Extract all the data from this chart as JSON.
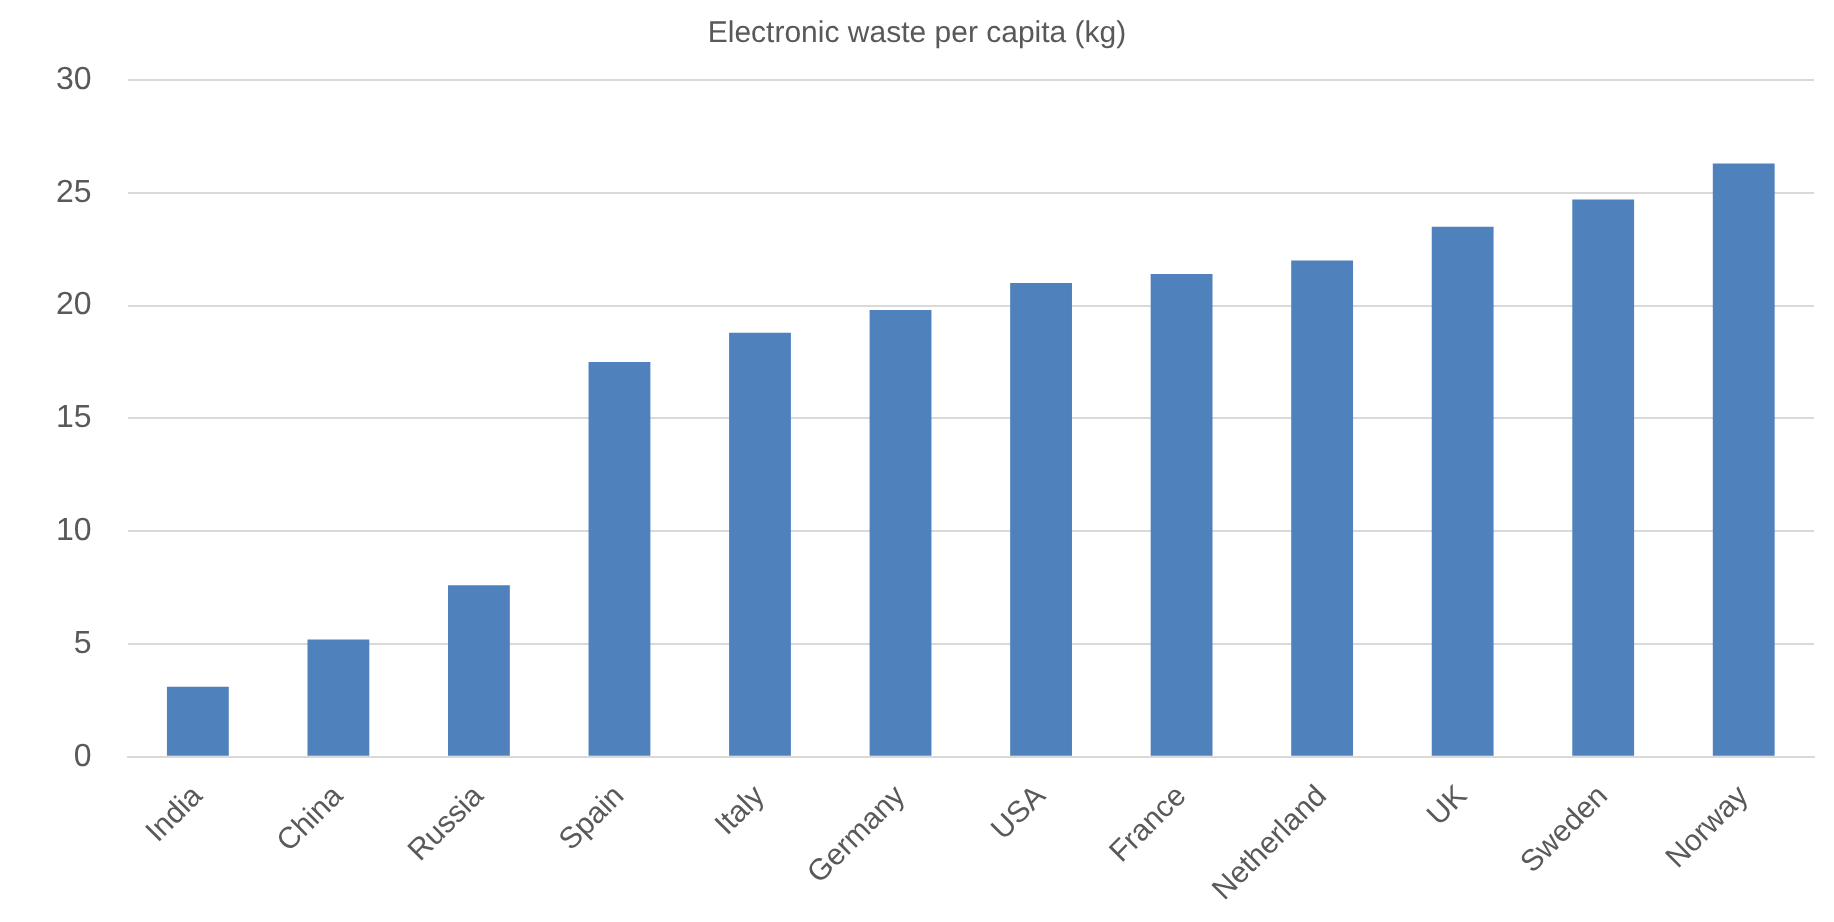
{
  "chart_data": {
    "type": "bar",
    "title": "Electronic waste per capita (kg)",
    "categories": [
      "India",
      "China",
      "Russia",
      "Spain",
      "Italy",
      "Germany",
      "USA",
      "France",
      "Netherland",
      "UK",
      "Sweden",
      "Norway"
    ],
    "values": [
      3.1,
      5.2,
      7.6,
      17.5,
      18.8,
      19.8,
      21.0,
      21.4,
      22.0,
      23.5,
      24.7,
      26.3
    ],
    "color": "#4f81bd",
    "ylim": [
      0,
      30
    ],
    "yticks": [
      0,
      5,
      10,
      15,
      20,
      25,
      30
    ],
    "grid": "y",
    "legend": false
  }
}
